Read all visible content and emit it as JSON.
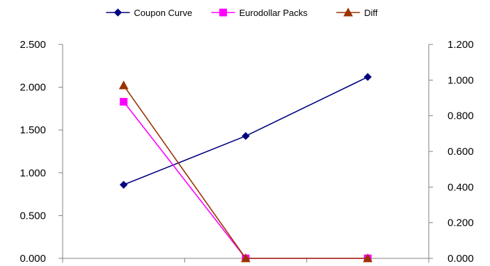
{
  "chart_data": {
    "type": "line",
    "categories": [
      "",
      "",
      ""
    ],
    "left_axis": {
      "ylim": [
        0,
        2.5
      ],
      "ticks": [
        "0.000",
        "0.500",
        "1.000",
        "1.500",
        "2.000",
        "2.500"
      ]
    },
    "right_axis": {
      "ylim": [
        0,
        1.2
      ],
      "ticks": [
        "0.000",
        "0.200",
        "0.400",
        "0.600",
        "0.800",
        "1.000",
        "1.200"
      ]
    },
    "grid": false,
    "legend_position": "top",
    "series": [
      {
        "name": "Coupon Curve",
        "axis": "left",
        "values": [
          0.86,
          1.43,
          2.12
        ],
        "color": "#000080",
        "marker": "diamond"
      },
      {
        "name": "Eurodollar Packs",
        "axis": "left",
        "values": [
          1.83,
          0.0,
          0.0
        ],
        "color": "#FF00FF",
        "marker": "square"
      },
      {
        "name": "Diff",
        "axis": "right",
        "values": [
          0.97,
          0.0,
          0.0
        ],
        "color": "#993300",
        "marker": "triangle"
      }
    ]
  }
}
